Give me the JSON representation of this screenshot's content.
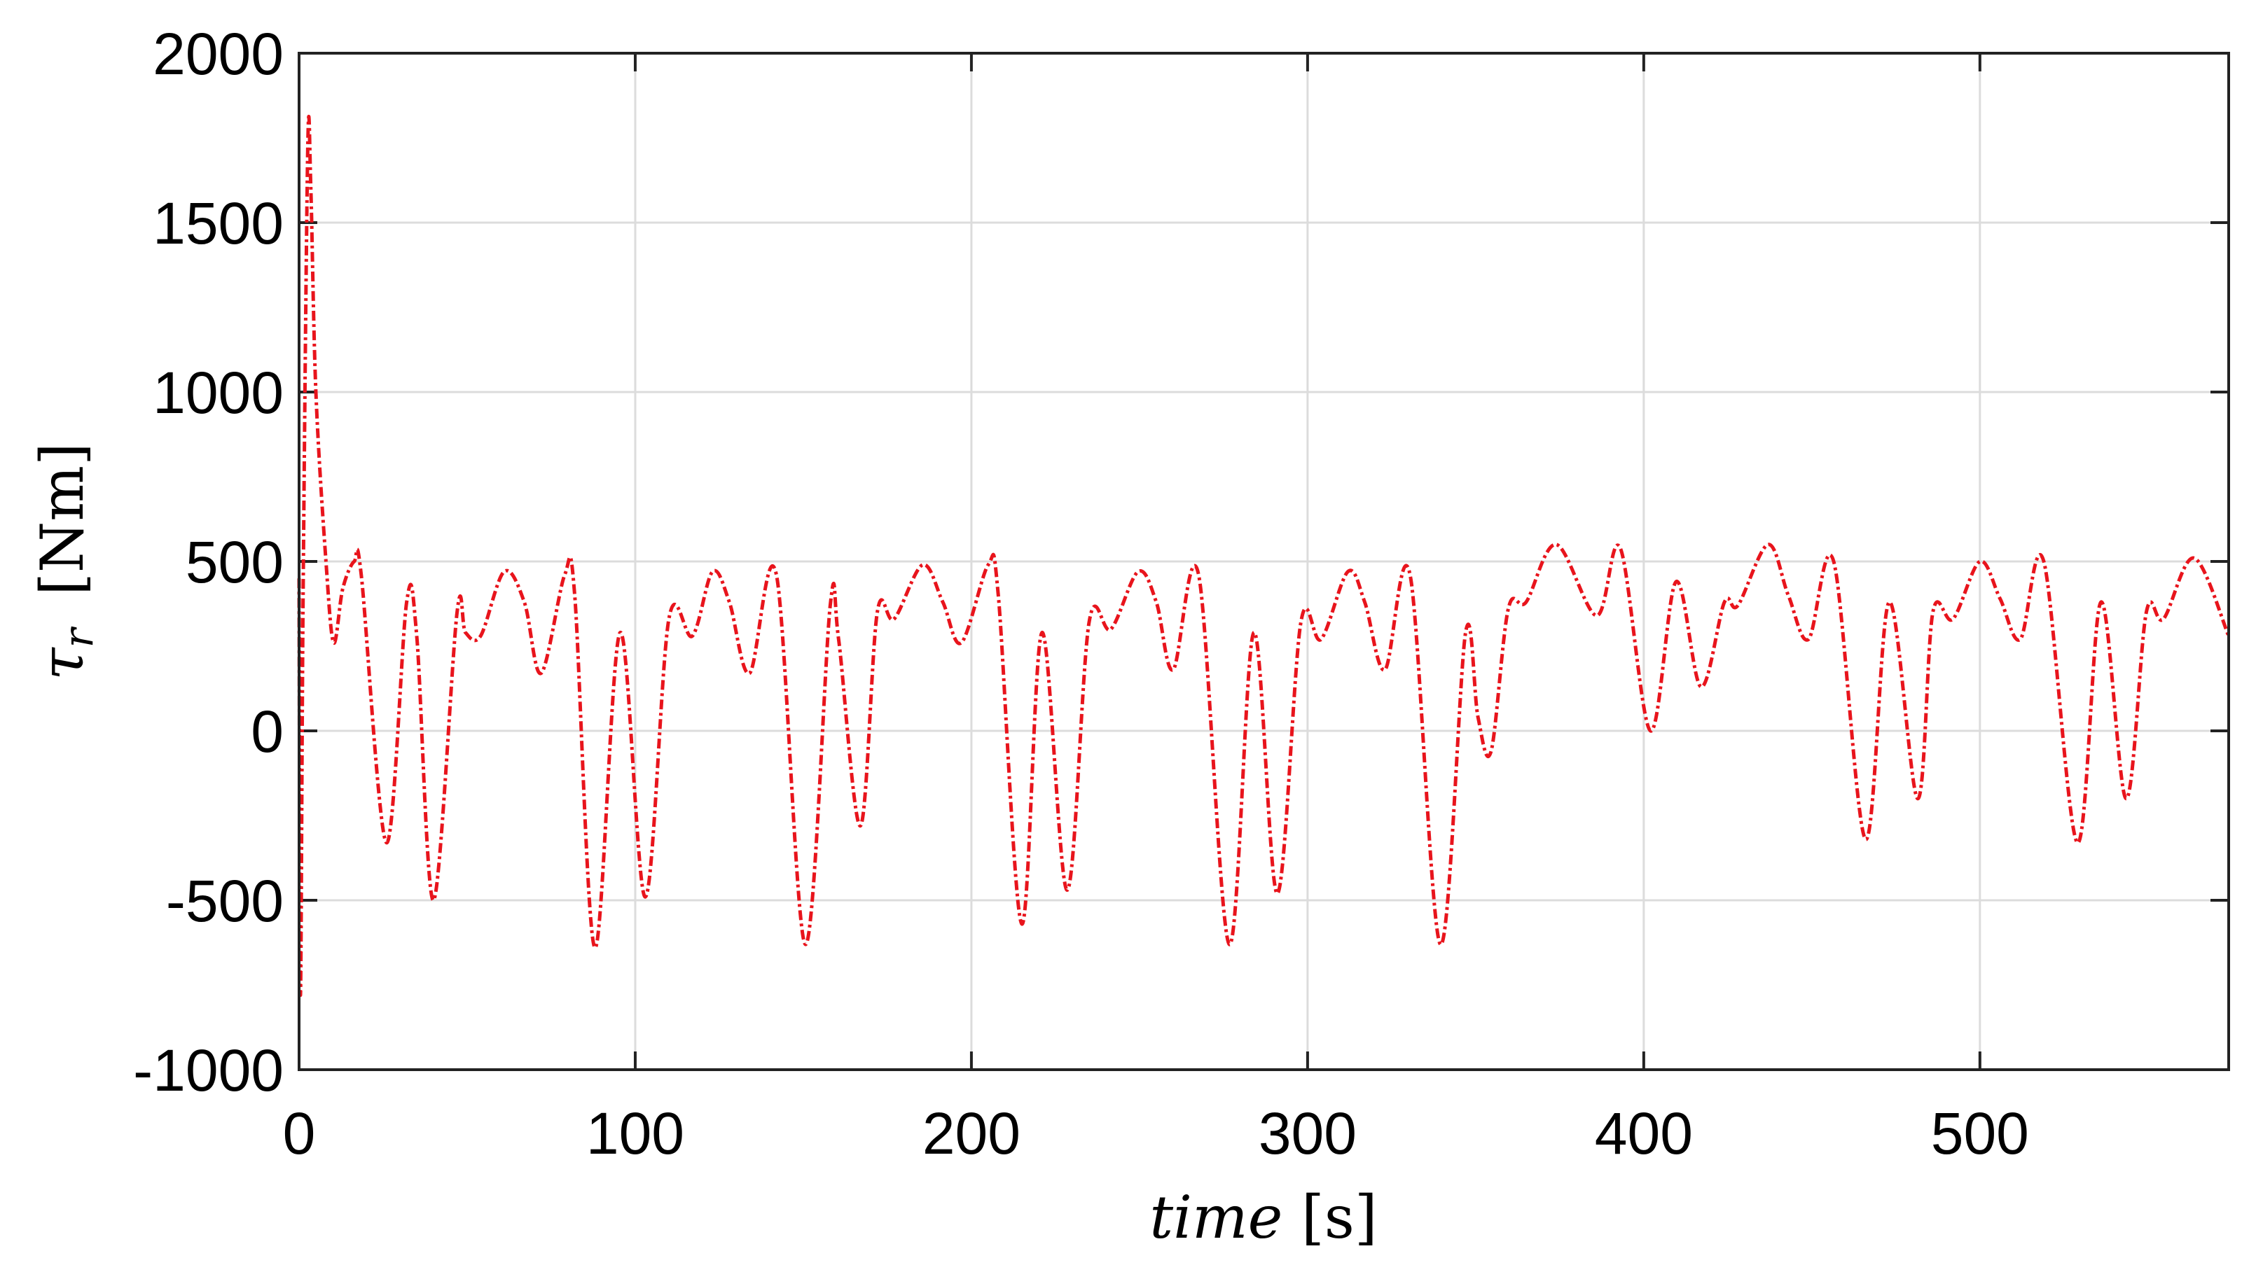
{
  "chart_data": {
    "type": "line",
    "title": "",
    "xlabel": {
      "var": "time",
      "unit": "[s]"
    },
    "ylabel": {
      "var": "τ",
      "sub": "r",
      "unit": "[Nm]"
    },
    "xlim": [
      0,
      574
    ],
    "ylim": [
      -1000,
      2000
    ],
    "xticks": [
      0,
      100,
      200,
      300,
      400,
      500
    ],
    "yticks": [
      -1000,
      -500,
      0,
      500,
      1000,
      1500,
      2000
    ],
    "xtick_labels": [
      "0",
      "100",
      "200",
      "300",
      "400",
      "500"
    ],
    "ytick_labels": [
      "-1000",
      "-500",
      "0",
      "500",
      "1000",
      "1500",
      "2000"
    ],
    "grid": true,
    "series": [
      {
        "color": "#e8141c",
        "line_style": "dash-dot",
        "x": [
          0,
          0.4,
          1.2,
          2.6,
          3.5,
          5,
          8,
          10.3,
          13,
          16.4,
          18.5,
          26,
          32,
          35,
          40,
          47,
          49.5,
          54,
          61,
          67,
          72,
          79,
          82,
          88,
          95.5,
          103,
          110,
          117,
          123,
          128,
          134,
          142,
          150.6,
          158,
          160.5,
          167,
          172,
          177,
          185.5,
          191.5,
          197,
          205,
          208,
          215,
          221,
          228.5,
          235,
          241.5,
          249.6,
          255,
          260,
          267.6,
          276.7,
          284,
          291,
          298,
          304,
          312,
          317,
          323,
          330.5,
          339.5,
          347,
          350.7,
          354.6,
          359.7,
          365,
          374,
          386,
          393,
          402,
          409.6,
          417,
          424,
          428,
          437,
          443,
          449,
          456.5,
          466,
          473,
          481.5,
          486,
          492,
          500,
          506,
          512,
          519,
          529,
          536,
          543.5,
          549.5,
          554.6,
          563.7,
          574
        ],
        "y": [
          450,
          -780,
          400,
          1730,
          1600,
          1000,
          500,
          260,
          420,
          500,
          460,
          -330,
          380,
          280,
          -500,
          350,
          290,
          280,
          470,
          380,
          170,
          460,
          400,
          -640,
          290,
          -490,
          330,
          280,
          470,
          380,
          170,
          460,
          -630,
          370,
          270,
          -280,
          350,
          330,
          490,
          380,
          260,
          490,
          400,
          -570,
          290,
          -470,
          320,
          300,
          470,
          380,
          180,
          460,
          -630,
          290,
          -480,
          320,
          270,
          470,
          380,
          180,
          460,
          -630,
          290,
          40,
          -60,
          360,
          380,
          550,
          340,
          540,
          0,
          440,
          130,
          380,
          370,
          550,
          400,
          270,
          500,
          -320,
          380,
          -200,
          350,
          330,
          500,
          390,
          270,
          500,
          -330,
          380,
          -200,
          350,
          330,
          510,
          280
        ]
      }
    ]
  }
}
